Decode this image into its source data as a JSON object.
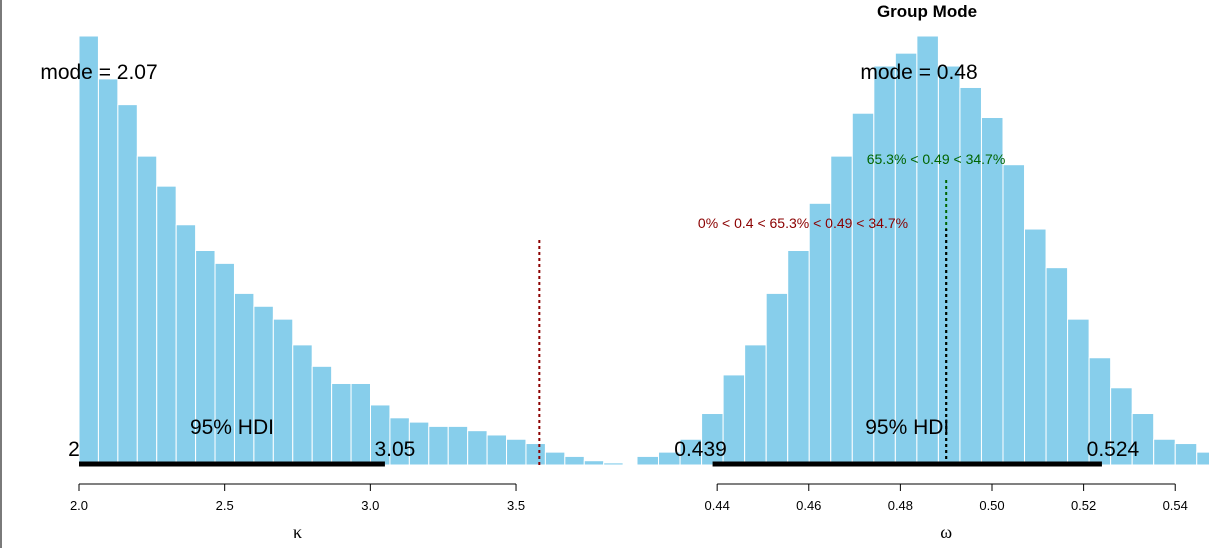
{
  "chart_data": [
    {
      "type": "bar",
      "name": "kappa-posterior",
      "title": "",
      "xlabel": "κ",
      "ylabel": "",
      "xlim": [
        2.0,
        3.85
      ],
      "ylim": [
        0,
        1.0
      ],
      "grid": false,
      "x_ticks": [
        {
          "value": 2.0,
          "label": "2.0"
        },
        {
          "value": 2.5,
          "label": "2.5"
        },
        {
          "value": 3.0,
          "label": "3.0"
        },
        {
          "value": 3.5,
          "label": "3.5"
        }
      ],
      "bin_width": 0.0667,
      "bin_start": 2.0,
      "values": [
        1.0,
        0.9,
        0.84,
        0.72,
        0.65,
        0.56,
        0.5,
        0.47,
        0.4,
        0.37,
        0.34,
        0.28,
        0.23,
        0.19,
        0.19,
        0.14,
        0.11,
        0.1,
        0.09,
        0.09,
        0.08,
        0.07,
        0.06,
        0.05,
        0.03,
        0.02,
        0.01,
        0.005
      ],
      "mode_text": "mode = 2.07",
      "hdi": {
        "low": 2.0,
        "high": 3.05,
        "low_label": "2",
        "high_label": "3.05",
        "text": "95% HDI"
      },
      "reference_line": {
        "x": 3.58,
        "color": "#8b0000",
        "height": 0.53
      }
    },
    {
      "type": "bar",
      "name": "omega-posterior",
      "title": "Group Mode",
      "xlabel": "ω",
      "ylabel": "",
      "xlim": [
        0.4225,
        0.5465
      ],
      "ylim": [
        0,
        1.0
      ],
      "grid": false,
      "x_ticks": [
        {
          "value": 0.44,
          "label": "0.44"
        },
        {
          "value": 0.46,
          "label": "0.46"
        },
        {
          "value": 0.48,
          "label": "0.48"
        },
        {
          "value": 0.5,
          "label": "0.50"
        },
        {
          "value": 0.52,
          "label": "0.52"
        },
        {
          "value": 0.54,
          "label": "0.54"
        }
      ],
      "bin_width": 0.0047,
      "bin_start": 0.4225,
      "values": [
        0.02,
        0.03,
        0.06,
        0.12,
        0.21,
        0.28,
        0.4,
        0.5,
        0.61,
        0.72,
        0.82,
        0.93,
        0.96,
        1.0,
        0.93,
        0.88,
        0.81,
        0.7,
        0.55,
        0.46,
        0.34,
        0.25,
        0.18,
        0.12,
        0.06,
        0.05,
        0.03,
        0.02
      ],
      "mode_text": "mode = 0.48",
      "hdi": {
        "low": 0.439,
        "high": 0.524,
        "low_label": "0.439",
        "high_label": "0.524",
        "text": "95% HDI"
      },
      "comparison_annotations": [
        {
          "text": "65.3% < 0.49 < 34.7%",
          "color": "#006400",
          "x": 0.49,
          "height": 0.67
        },
        {
          "text": "0% < 0.4 < 65.3% < 0.49 < 34.7%",
          "color": "#8b0000",
          "x": 0.49,
          "height": 0.55
        }
      ]
    }
  ]
}
